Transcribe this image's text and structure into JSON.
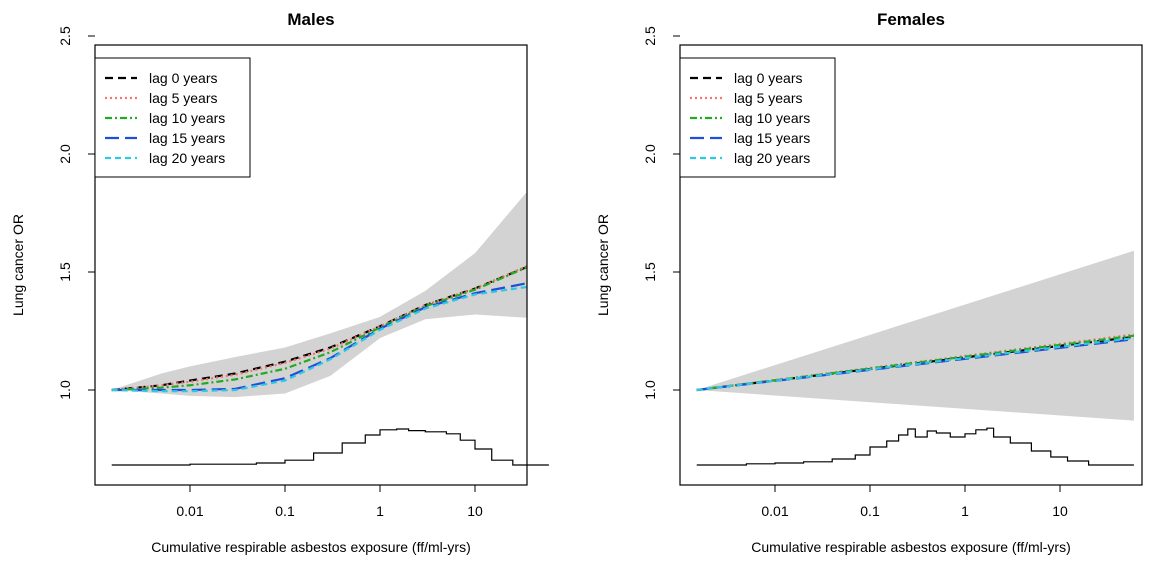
{
  "chart_data": [
    {
      "type": "line",
      "title": "Males",
      "xlabel": "Cumulative respirable asbestos exposure (ff/ml-yrs)",
      "ylabel": "Lung cancer OR",
      "x_scale": "log",
      "x_ticks": [
        "0.01",
        "0.1",
        "1",
        "10"
      ],
      "y_ticks": [
        "1.0",
        "1.5",
        "2.0",
        "2.5"
      ],
      "ylim": [
        0.9,
        2.55
      ],
      "xlim": [
        0.0008,
        80
      ],
      "legend_position": "top-left",
      "x": [
        0.0015,
        0.005,
        0.01,
        0.03,
        0.1,
        0.3,
        1,
        3,
        10,
        60
      ],
      "series": [
        {
          "name": "lag 0 years",
          "color": "#000000",
          "dash": "8,5",
          "values": [
            1.0,
            1.02,
            1.04,
            1.07,
            1.12,
            1.18,
            1.27,
            1.36,
            1.43,
            1.56
          ]
        },
        {
          "name": "lag 5 years",
          "color": "#f4756b",
          "dash": "2,3",
          "values": [
            1.0,
            1.02,
            1.035,
            1.065,
            1.115,
            1.175,
            1.27,
            1.36,
            1.43,
            1.565
          ]
        },
        {
          "name": "lag 10 years",
          "color": "#22aa22",
          "dash": "7,3,2,3",
          "values": [
            1.0,
            1.01,
            1.02,
            1.045,
            1.09,
            1.16,
            1.265,
            1.355,
            1.425,
            1.56
          ]
        },
        {
          "name": "lag 15 years",
          "color": "#1f4fd6",
          "dash": "14,6",
          "values": [
            1.0,
            1.0,
            1.0,
            1.005,
            1.05,
            1.135,
            1.26,
            1.35,
            1.41,
            1.47
          ]
        },
        {
          "name": "lag 20 years",
          "color": "#2ec8e6",
          "dash": "6,4",
          "values": [
            1.0,
            0.995,
            0.995,
            1.0,
            1.04,
            1.13,
            1.255,
            1.345,
            1.405,
            1.45
          ]
        }
      ],
      "ci_band": {
        "x": [
          0.0015,
          0.005,
          0.01,
          0.03,
          0.1,
          0.3,
          1,
          3,
          10,
          60
        ],
        "lower": [
          1.0,
          0.985,
          0.975,
          0.97,
          0.985,
          1.06,
          1.22,
          1.3,
          1.32,
          1.3
        ],
        "upper": [
          1.0,
          1.07,
          1.1,
          1.14,
          1.18,
          1.24,
          1.31,
          1.42,
          1.58,
          1.95
        ]
      },
      "exposure_histogram": {
        "x": [
          0.0015,
          0.01,
          0.05,
          0.1,
          0.2,
          0.4,
          0.7,
          1,
          1.5,
          2,
          3,
          5,
          7,
          10,
          15,
          25,
          60
        ],
        "density": [
          0.0,
          0.02,
          0.05,
          0.12,
          0.3,
          0.55,
          0.75,
          0.88,
          0.9,
          0.86,
          0.83,
          0.78,
          0.62,
          0.4,
          0.12,
          0.0,
          0.0
        ]
      }
    },
    {
      "type": "line",
      "title": "Females",
      "xlabel": "Cumulative respirable asbestos exposure (ff/ml-yrs)",
      "ylabel": "Lung cancer OR",
      "x_scale": "log",
      "x_ticks": [
        "0.01",
        "0.1",
        "1",
        "10"
      ],
      "y_ticks": [
        "1.0",
        "1.5",
        "2.0",
        "2.5"
      ],
      "ylim": [
        0.9,
        2.55
      ],
      "xlim": [
        0.0008,
        80
      ],
      "legend_position": "top-left",
      "x": [
        0.0015,
        60
      ],
      "series": [
        {
          "name": "lag 0 years",
          "color": "#000000",
          "dash": "8,5",
          "values": [
            1.0,
            1.225
          ]
        },
        {
          "name": "lag 5 years",
          "color": "#f4756b",
          "dash": "2,3",
          "values": [
            1.0,
            1.235
          ]
        },
        {
          "name": "lag 10 years",
          "color": "#22aa22",
          "dash": "7,3,2,3",
          "values": [
            1.0,
            1.23
          ]
        },
        {
          "name": "lag 15 years",
          "color": "#1f4fd6",
          "dash": "14,6",
          "values": [
            1.0,
            1.215
          ]
        },
        {
          "name": "lag 20 years",
          "color": "#2ec8e6",
          "dash": "6,4",
          "values": [
            1.0,
            1.22
          ]
        }
      ],
      "ci_band": {
        "x": [
          0.0015,
          60
        ],
        "lower": [
          1.0,
          0.87
        ],
        "upper": [
          1.0,
          1.59
        ]
      },
      "exposure_histogram": {
        "x": [
          0.0015,
          0.005,
          0.01,
          0.02,
          0.04,
          0.07,
          0.1,
          0.15,
          0.2,
          0.25,
          0.3,
          0.4,
          0.5,
          0.7,
          1,
          1.3,
          1.7,
          2,
          3,
          5,
          8,
          12,
          20,
          60
        ],
        "density": [
          0.0,
          0.03,
          0.05,
          0.08,
          0.15,
          0.25,
          0.45,
          0.6,
          0.75,
          0.9,
          0.7,
          0.85,
          0.8,
          0.7,
          0.78,
          0.88,
          0.92,
          0.7,
          0.55,
          0.35,
          0.2,
          0.1,
          0.0,
          0.0
        ]
      }
    }
  ]
}
